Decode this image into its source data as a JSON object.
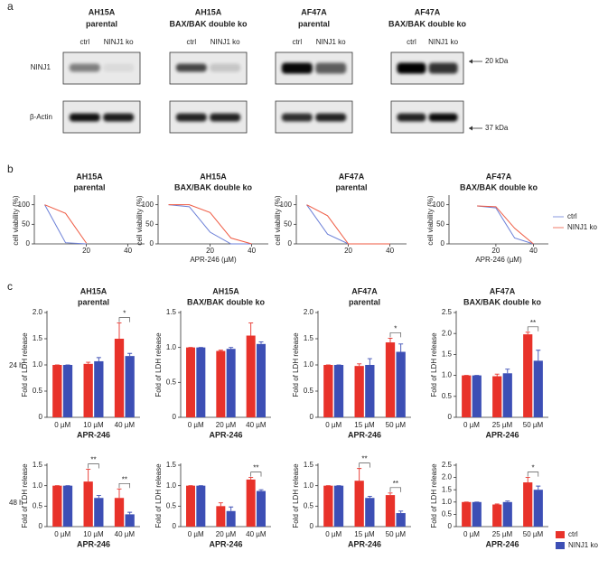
{
  "panel_labels": [
    "a",
    "b",
    "c"
  ],
  "blot": {
    "groups": [
      {
        "title": [
          "AH15A",
          "parental"
        ],
        "lanes": [
          "ctrl",
          "NINJ1 ko"
        ]
      },
      {
        "title": [
          "AH15A",
          "BAX/BAK double ko"
        ],
        "lanes": [
          "ctrl",
          "NINJ1 ko"
        ]
      },
      {
        "title": [
          "AF47A",
          "parental"
        ],
        "lanes": [
          "ctrl",
          "NINJ1 ko"
        ]
      },
      {
        "title": [
          "AF47A",
          "BAX/BAK double ko"
        ],
        "lanes": [
          "ctrl",
          "NINJ1 ko"
        ]
      }
    ],
    "rows": [
      "NINJ1",
      "β-Actin"
    ],
    "markers": [
      "20 kDa",
      "37 kDa"
    ]
  },
  "row_labels": [
    "24 h",
    "48 h"
  ],
  "chart_data": [
    {
      "type": "line",
      "title": [
        "AH15A",
        "parental"
      ],
      "ylabel": "cell viability (%)",
      "x": [
        0,
        10,
        20
      ],
      "xlim": [
        -5,
        48
      ],
      "xticks": [
        20,
        40
      ],
      "ylim": [
        0,
        120
      ],
      "yticks": [
        0,
        50,
        100
      ],
      "series": [
        {
          "color": "#6b7fd7",
          "values": [
            100,
            3,
            0
          ]
        },
        {
          "color": "#ef5a42",
          "values": [
            100,
            78,
            2
          ]
        }
      ]
    },
    {
      "type": "line",
      "title": [
        "AH15A",
        "BAX/BAK double ko"
      ],
      "ylabel": "cell viability (%)",
      "xlabel": "APR-246 (µM)",
      "x": [
        0,
        10,
        20,
        30,
        40
      ],
      "xlim": [
        -5,
        48
      ],
      "xticks": [
        20,
        40
      ],
      "ylim": [
        0,
        120
      ],
      "yticks": [
        0,
        50,
        100
      ],
      "series": [
        {
          "color": "#6b7fd7",
          "values": [
            100,
            95,
            30,
            0,
            0
          ]
        },
        {
          "color": "#ef5a42",
          "values": [
            100,
            100,
            80,
            15,
            0
          ]
        }
      ]
    },
    {
      "type": "line",
      "title": [
        "AF47A",
        "parental"
      ],
      "ylabel": "cell viability (%)",
      "x": [
        0,
        10,
        20,
        30,
        40
      ],
      "xlim": [
        -5,
        48
      ],
      "xticks": [
        20,
        40
      ],
      "ylim": [
        0,
        120
      ],
      "yticks": [
        0,
        50,
        100
      ],
      "series": [
        {
          "color": "#6b7fd7",
          "values": [
            100,
            25,
            0,
            0,
            0
          ]
        },
        {
          "color": "#ef5a42",
          "values": [
            100,
            72,
            0,
            0,
            0
          ]
        }
      ]
    },
    {
      "type": "line",
      "title": [
        "AF47A",
        "BAX/BAK double ko"
      ],
      "ylabel": "cell viability (%)",
      "xlabel": "APR-246 (µM)",
      "x": [
        10,
        20,
        30,
        40
      ],
      "xlim": [
        -5,
        48
      ],
      "xticks": [
        20,
        40
      ],
      "ylim": [
        0,
        120
      ],
      "yticks": [
        0,
        50,
        100
      ],
      "legend": "right",
      "series": [
        {
          "name": "ctrl",
          "color": "#6b7fd7",
          "values": [
            97,
            92,
            15,
            0
          ]
        },
        {
          "name": "NINJ1 ko",
          "color": "#ef5a42",
          "values": [
            97,
            95,
            40,
            0
          ]
        }
      ]
    },
    {
      "type": "bar",
      "title": [
        "AH15A",
        "parental"
      ],
      "categories": [
        "0 µM",
        "10 µM",
        "40 µM"
      ],
      "xlabel": "APR-246",
      "ylabel": "Fold of LDH release",
      "ylim": [
        0,
        2
      ],
      "yticks": [
        0,
        0.5,
        {
          "value": 1,
          "label": "1.0"
        },
        1.5,
        {
          "value": 2,
          "label": "2.0"
        }
      ],
      "series": [
        {
          "color": "#e8322a",
          "values": [
            1.0,
            1.02,
            1.5
          ],
          "errors": [
            0,
            0.03,
            0.3
          ]
        },
        {
          "color": "#3d4fb5",
          "values": [
            1.0,
            1.07,
            1.17
          ],
          "errors": [
            0,
            0.07,
            0.05
          ]
        }
      ],
      "significance": [
        null,
        null,
        "*"
      ]
    },
    {
      "type": "bar",
      "title": [
        "AH15A",
        "BAX/BAK double ko"
      ],
      "categories": [
        "0 µM",
        "20 µM",
        "40 µM"
      ],
      "xlabel": "APR-246",
      "ylabel": "Fold of LDH release",
      "ylim": [
        0,
        1.5
      ],
      "yticks": [
        0,
        0.5,
        {
          "value": 1,
          "label": "1.0"
        },
        1.5
      ],
      "series": [
        {
          "color": "#e8322a",
          "values": [
            1.0,
            0.95,
            1.17
          ],
          "errors": [
            0,
            0.01,
            0.18
          ]
        },
        {
          "color": "#3d4fb5",
          "values": [
            1.0,
            0.98,
            1.05
          ],
          "errors": [
            0,
            0.02,
            0.03
          ]
        }
      ],
      "significance": [
        null,
        null,
        null
      ]
    },
    {
      "type": "bar",
      "title": [
        "AF47A",
        "parental"
      ],
      "categories": [
        "0 µM",
        "15 µM",
        "50 µM"
      ],
      "xlabel": "APR-246",
      "ylabel": "Fold of LDH release",
      "ylim": [
        0,
        2
      ],
      "yticks": [
        0,
        0.5,
        {
          "value": 1,
          "label": "1.0"
        },
        1.5,
        {
          "value": 2,
          "label": "2.0"
        }
      ],
      "series": [
        {
          "color": "#e8322a",
          "values": [
            1.0,
            0.98,
            1.43
          ],
          "errors": [
            0,
            0.04,
            0.08
          ]
        },
        {
          "color": "#3d4fb5",
          "values": [
            1.0,
            1.0,
            1.25
          ],
          "errors": [
            0,
            0.12,
            0.15
          ]
        }
      ],
      "significance": [
        null,
        null,
        "*"
      ]
    },
    {
      "type": "bar",
      "title": [
        "AF47A",
        "BAX/BAK double ko"
      ],
      "categories": [
        "0 µM",
        "25 µM",
        "50 µM"
      ],
      "xlabel": "APR-246",
      "ylabel": "Fold of LDH release",
      "ylim": [
        0,
        2.5
      ],
      "yticks": [
        0,
        0.5,
        {
          "value": 1,
          "label": "1.0"
        },
        1.5,
        {
          "value": 2,
          "label": "2.0"
        },
        2.5
      ],
      "series": [
        {
          "color": "#e8322a",
          "values": [
            1.0,
            0.98,
            1.98
          ],
          "errors": [
            0,
            0.05,
            0.05
          ]
        },
        {
          "color": "#3d4fb5",
          "values": [
            1.0,
            1.05,
            1.35
          ],
          "errors": [
            0,
            0.1,
            0.25
          ]
        }
      ],
      "significance": [
        null,
        null,
        "**"
      ]
    },
    {
      "type": "bar",
      "categories": [
        "0 µM",
        "10 µM",
        "40 µM"
      ],
      "xlabel": "APR-246",
      "ylabel": "Fold of LDH release",
      "ylim": [
        0,
        1.5
      ],
      "yticks": [
        0,
        0.5,
        {
          "value": 1,
          "label": "1.0"
        },
        1.5
      ],
      "series": [
        {
          "color": "#e8322a",
          "values": [
            1.0,
            1.1,
            0.7
          ],
          "errors": [
            0,
            0.3,
            0.22
          ]
        },
        {
          "color": "#3d4fb5",
          "values": [
            1.0,
            0.7,
            0.3
          ],
          "errors": [
            0,
            0.06,
            0.05
          ]
        }
      ],
      "significance": [
        null,
        "**",
        "**"
      ]
    },
    {
      "type": "bar",
      "categories": [
        "0 µM",
        "20 µM",
        "40 µM"
      ],
      "xlabel": "APR-246",
      "ylabel": "Fold of LDH release",
      "ylim": [
        0,
        1.5
      ],
      "yticks": [
        0,
        0.5,
        {
          "value": 1,
          "label": "1.0"
        },
        1.5
      ],
      "series": [
        {
          "color": "#e8322a",
          "values": [
            1.0,
            0.5,
            1.15
          ],
          "errors": [
            0,
            0.08,
            0.05
          ]
        },
        {
          "color": "#3d4fb5",
          "values": [
            1.0,
            0.38,
            0.87
          ],
          "errors": [
            0,
            0.1,
            0.03
          ]
        }
      ],
      "significance": [
        null,
        null,
        "**"
      ]
    },
    {
      "type": "bar",
      "categories": [
        "0 µM",
        "15 µM",
        "50 µM"
      ],
      "xlabel": "APR-246",
      "ylabel": "Fold of LDH release",
      "ylim": [
        0,
        1.5
      ],
      "yticks": [
        0,
        0.5,
        {
          "value": 1,
          "label": "1.0"
        },
        1.5
      ],
      "series": [
        {
          "color": "#e8322a",
          "values": [
            1.0,
            1.12,
            0.77
          ],
          "errors": [
            0,
            0.3,
            0.05
          ]
        },
        {
          "color": "#3d4fb5",
          "values": [
            1.0,
            0.7,
            0.33
          ],
          "errors": [
            0,
            0.04,
            0.05
          ]
        }
      ],
      "significance": [
        null,
        "**",
        "**"
      ]
    },
    {
      "type": "bar",
      "categories": [
        "0 µM",
        "25 µM",
        "50 µM"
      ],
      "xlabel": "APR-246",
      "ylabel": "Fold of LDH release",
      "ylim": [
        0,
        2.5
      ],
      "yticks": [
        0,
        0.5,
        {
          "value": 1,
          "label": "1.0"
        },
        1.5,
        {
          "value": 2,
          "label": "2.0"
        },
        2.5
      ],
      "legend": "outside-bottom-right",
      "series": [
        {
          "name": "ctrl",
          "color": "#e8322a",
          "values": [
            1.0,
            0.9,
            1.8
          ],
          "errors": [
            0,
            0.02,
            0.2
          ]
        },
        {
          "name": "NINJ1 ko",
          "color": "#3d4fb5",
          "values": [
            1.0,
            1.0,
            1.5
          ],
          "errors": [
            0,
            0.04,
            0.15
          ]
        }
      ],
      "significance": [
        null,
        null,
        "*"
      ]
    }
  ]
}
